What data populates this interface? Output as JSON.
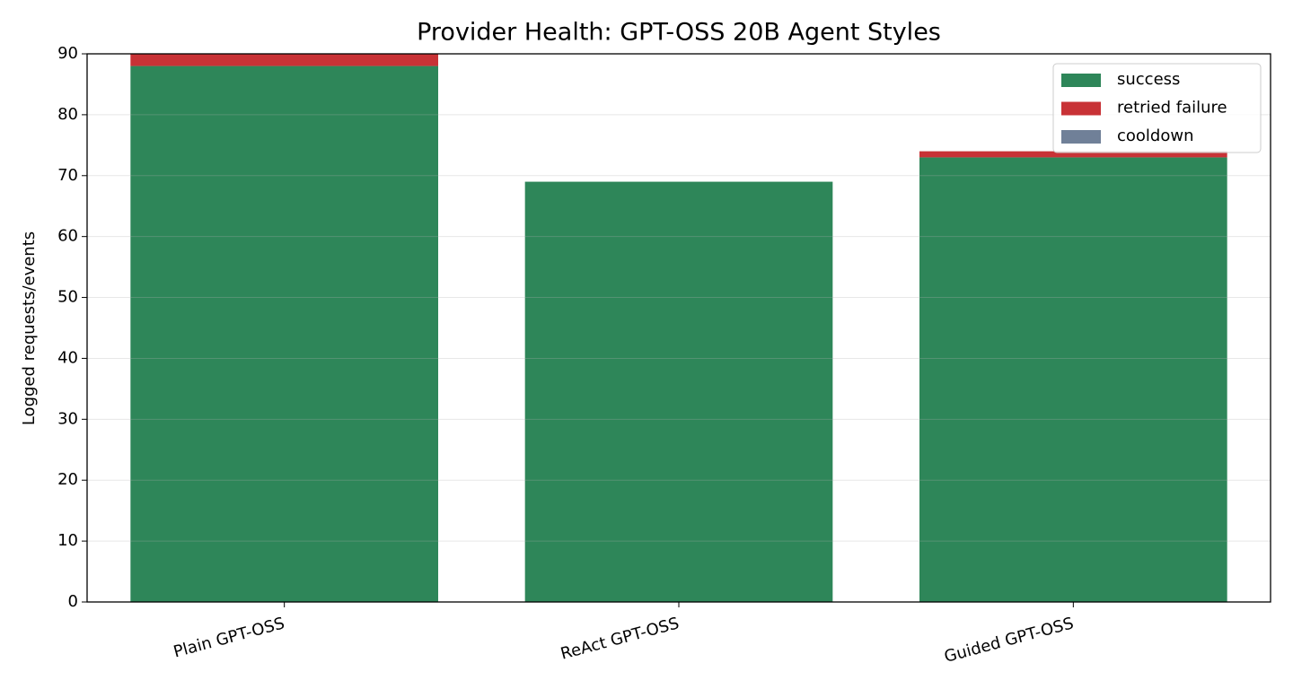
{
  "chart_data": {
    "type": "stacked_bar",
    "title": "Provider Health: GPT-OSS 20B Agent Styles",
    "y_label": "Logged requests/events",
    "categories": [
      "Plain GPT-OSS",
      "ReAct GPT-OSS",
      "Guided GPT-OSS"
    ],
    "series": [
      {
        "name": "success",
        "color": "#2e8659",
        "values": [
          88,
          69,
          73
        ]
      },
      {
        "name": "retried failure",
        "color": "#c83236",
        "values": [
          2,
          0,
          1
        ]
      },
      {
        "name": "cooldown",
        "color": "#708098",
        "values": [
          0,
          0,
          0
        ]
      }
    ],
    "ylim": [
      0,
      90
    ],
    "yticks": [
      0,
      10,
      20,
      30,
      40,
      50,
      60,
      70,
      80,
      90
    ],
    "grid": true,
    "legend": "upper right"
  }
}
